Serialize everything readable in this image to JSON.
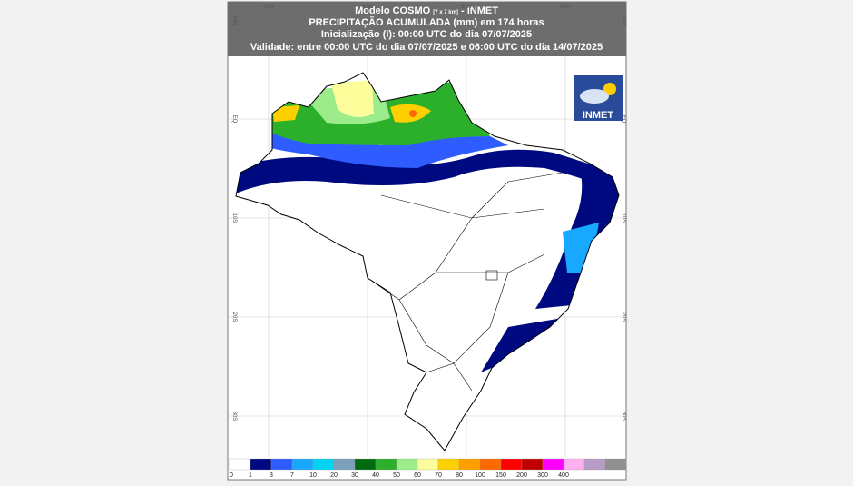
{
  "header": {
    "model": "Modelo COSMO",
    "resolution": "[7 x 7 km]",
    "source": "- INMET",
    "title": "PRECIPITAÇÃO ACUMULADA (mm) em 174 horas",
    "init": "Inicialização (I): 00:00 UTC do dia 07/07/2025",
    "validity": "Validade: entre 00:00 UTC do dia 07/07/2025 e 06:00 UTC do dia 14/07/2025"
  },
  "grid": {
    "longitudes": [
      "70W",
      "60W",
      "50W",
      "40W"
    ],
    "latitudes": [
      "10N",
      "EQ",
      "10S",
      "20S",
      "30S"
    ]
  },
  "logo": {
    "text": "INMET"
  },
  "legend": {
    "labels": [
      0,
      1,
      3,
      7,
      10,
      20,
      30,
      40,
      50,
      60,
      70,
      80,
      100,
      150,
      200,
      300,
      400
    ],
    "colors": [
      "#ffffff",
      "#000a80",
      "#2f5cff",
      "#18a8ff",
      "#00d4f0",
      "#7aa0bc",
      "#006a10",
      "#2cb02c",
      "#9cec8c",
      "#fdfd9c",
      "#ffd000",
      "#ffa000",
      "#ff6a00",
      "#ff0000",
      "#c00000",
      "#ff00ff",
      "#ffb0f0",
      "#b89cc8",
      "#909090"
    ]
  }
}
